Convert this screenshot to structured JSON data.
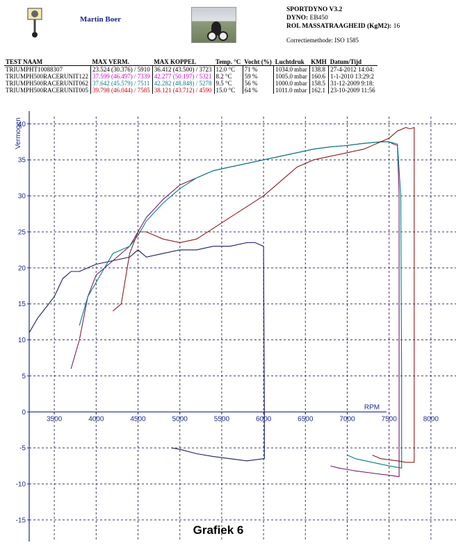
{
  "header": {
    "name": "Martin Boer",
    "line1": "SPORTDYNO V3.2",
    "line2_label": "DYNO:",
    "line2_value": "EB450",
    "line3_label": "ROL MASSATRAAGHEID (KgM2):",
    "line3_value": "16",
    "correctie": "Correctiemethode: ISO 1585"
  },
  "table": {
    "headers": [
      "TEST NAAM",
      "MAX VERM.",
      "MAX KOPPEL",
      "Temp. °C",
      "Vocht (%)",
      "Luchtdruk",
      "KMH",
      "Datum/Tijd"
    ],
    "rows": [
      {
        "color": "#000000",
        "cells": [
          "TRIUMPHT10088307",
          "23.524 (30.376) / 5910",
          "36.412 (43.500) / 3723",
          "12.0 °C",
          "71 %",
          "1034.0 mbar",
          "138.8",
          "27-4-2012 14:04:"
        ]
      },
      {
        "color": "#cc00cc",
        "cells": [
          "TRIUMPH500RACERUNIT122",
          "37.599 (46.497) / 7339",
          "42.277 (50.197) / 5321",
          "8.2 °C",
          "59 %",
          "1005.0 mbar",
          "160.6",
          "1-1-2010 13:29:2"
        ]
      },
      {
        "color": "#008080",
        "cells": [
          "TRIUMPH500RACERUNIT062",
          "37.642 (45.579) / 7511",
          "42.282 (48.848) / 5278",
          "9.5 °C",
          "56 %",
          "1000.0 mbar",
          "158.5",
          "31-12-2009 9:18:"
        ]
      },
      {
        "color": "#cc0000",
        "cells": [
          "TRIUMPH500RACERUNIT005",
          "39.798 (46.044) / 7585",
          "38.121 (43.712) / 4590",
          "15.0 °C",
          "64 %",
          "1011.0 mbar",
          "162.1",
          "23-10-2009 11:56"
        ]
      }
    ]
  },
  "chart_data": {
    "type": "line",
    "ylabel": "Vermogen",
    "xlabel": "RPM",
    "annotation": "Grafiek 6",
    "xlim": [
      3200,
      8300
    ],
    "ylim": [
      -18,
      41
    ],
    "xticks": [
      3500,
      4000,
      4500,
      5000,
      5500,
      6000,
      6500,
      7000,
      7500,
      8000
    ],
    "yticks": [
      -15,
      -10,
      -5,
      0,
      5,
      10,
      15,
      20,
      25,
      30,
      35,
      40
    ],
    "grid": true,
    "series": [
      {
        "color": "#1a1a6a",
        "x": [
          3200,
          3300,
          3400,
          3500,
          3600,
          3700,
          3800,
          3900,
          4000,
          4200,
          4400,
          4500,
          4600,
          4800,
          5000,
          5200,
          5400,
          5600,
          5800,
          5900,
          6000,
          6010,
          6010,
          6000,
          5800,
          5600,
          5400,
          5200,
          5000,
          4900
        ],
        "y": [
          11,
          13,
          14.5,
          16,
          18.5,
          19.5,
          19.5,
          20,
          20.5,
          21,
          21.5,
          22.5,
          21.5,
          22,
          22.5,
          22.5,
          23,
          23,
          23.5,
          23.5,
          23,
          0,
          -6.5,
          -6.5,
          -6.8,
          -6.5,
          -6.2,
          -5.8,
          -5.2,
          -5
        ]
      },
      {
        "color": "#7a1a6a",
        "x": [
          3700,
          3800,
          3900,
          4000,
          4200,
          4400,
          4500,
          4600,
          4800,
          5000,
          5200,
          5400,
          5600,
          5800,
          6000,
          6200,
          6400,
          6600,
          6800,
          7000,
          7200,
          7400,
          7500,
          7550,
          7600,
          7620,
          7620,
          7500,
          7300,
          7100,
          6900,
          6800
        ],
        "y": [
          6,
          10,
          16,
          19,
          21,
          23,
          25,
          27,
          29.5,
          31.5,
          32.5,
          33.5,
          34,
          34.5,
          35,
          35.5,
          36,
          36.5,
          36.8,
          37,
          37.3,
          37.5,
          37.5,
          37.2,
          37,
          30,
          -9,
          -8.8,
          -8.5,
          -8.2,
          -7.8,
          -7.5
        ]
      },
      {
        "color": "#008080",
        "x": [
          3800,
          3900,
          4000,
          4200,
          4400,
          4500,
          4600,
          4800,
          5000,
          5200,
          5400,
          5600,
          5800,
          6000,
          6200,
          6400,
          6600,
          6800,
          7000,
          7200,
          7400,
          7500,
          7600,
          7640,
          7650,
          7650,
          7500,
          7300,
          7100,
          7000
        ],
        "y": [
          12,
          16,
          18,
          22,
          23,
          24.5,
          26.5,
          29,
          31,
          32.5,
          33.5,
          34,
          34.5,
          35,
          35.5,
          36,
          36.5,
          36.8,
          37,
          37.3,
          37.5,
          37.5,
          37.2,
          30,
          5,
          -7.8,
          -7.5,
          -7,
          -6.5,
          -6
        ]
      },
      {
        "color": "#8a1c1c",
        "x": [
          4200,
          4300,
          4400,
          4500,
          4600,
          4800,
          5000,
          5200,
          5400,
          5600,
          5800,
          6000,
          6200,
          6400,
          6600,
          6800,
          7000,
          7200,
          7400,
          7500,
          7600,
          7700,
          7750,
          7800,
          7800,
          7700,
          7600,
          7400,
          7300
        ],
        "y": [
          14,
          15,
          22,
          25,
          25,
          24,
          23.5,
          24,
          25.5,
          27,
          28.5,
          30,
          32,
          34,
          35,
          35.5,
          36,
          36.5,
          37.5,
          38,
          39,
          39.5,
          39.3,
          39.5,
          -7,
          -7,
          -6.8,
          -6.5,
          -6
        ]
      }
    ]
  }
}
